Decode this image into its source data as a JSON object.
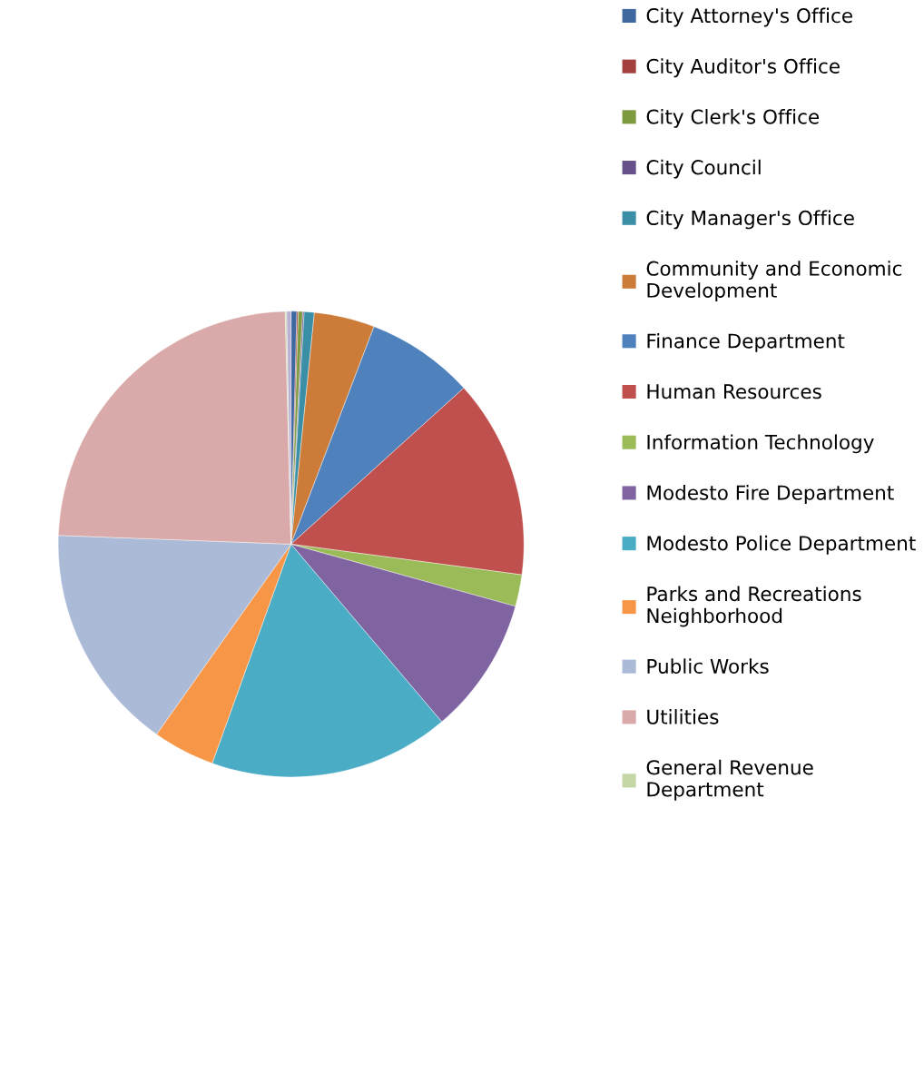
{
  "chart_data": {
    "type": "pie",
    "categories": [
      "City Attorney's Office",
      "City Auditor's Office",
      "City Clerk's Office",
      "City Council",
      "City Manager's Office",
      "Community and Economic\nDevelopment",
      "Finance Department",
      "Human Resources",
      "Information Technology",
      "Modesto Fire Department",
      "Modesto Police Department",
      "Parks and Recreations\nNeighborhood",
      "Public Works",
      "Utilities",
      "General Revenue\nDepartment",
      null
    ],
    "values": [
      0.4,
      0.1,
      0.3,
      0.1,
      0.7,
      4.2,
      7.5,
      13.8,
      2.2,
      9.5,
      16.7,
      4.3,
      15.8,
      24.0,
      0.1,
      0.3
    ],
    "colors": [
      "#3f67a0",
      "#a33f3c",
      "#7d9a3f",
      "#66518a",
      "#3a8fa6",
      "#cd7b38",
      "#4f81bd",
      "#c0504d",
      "#9bbb59",
      "#8064a2",
      "#4bacc6",
      "#f79646",
      "#aabad7",
      "#d9aaa9",
      "#c4d7a5",
      "#b9b0d4"
    ],
    "legend": "right"
  }
}
